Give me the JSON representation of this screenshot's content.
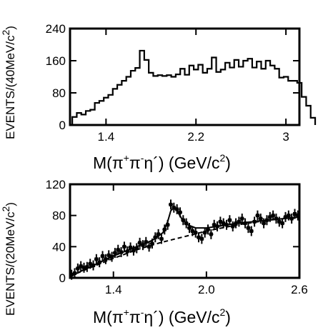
{
  "chart_data": [
    {
      "type": "histogram",
      "ylabel_main": "EVENTS/(40MeV/c",
      "ylabel_sup": "2",
      "ylabel_close": ")",
      "xlabel": {
        "m": "M(π",
        "plus": "+",
        "pi2": "π",
        "minus": "-",
        "eta": "η´)  (GeV/c",
        "sq": "2",
        "close": ")"
      },
      "xlim": [
        1.08,
        3.12
      ],
      "ylim": [
        0,
        240
      ],
      "xticks": [
        1.4,
        2.2,
        3.0
      ],
      "xtick_labels": [
        "1.4",
        "2.2",
        "3"
      ],
      "yticks": [
        0,
        80,
        160,
        240
      ],
      "ytick_labels": [
        "0",
        "80",
        "160",
        "240"
      ],
      "bin_width": 0.04,
      "bins_start": 1.1,
      "values": [
        20,
        30,
        26,
        35,
        38,
        55,
        60,
        68,
        75,
        90,
        100,
        110,
        120,
        135,
        142,
        185,
        162,
        130,
        122,
        124,
        122,
        124,
        120,
        126,
        140,
        125,
        148,
        138,
        150,
        130,
        140,
        168,
        132,
        138,
        155,
        143,
        162,
        145,
        160,
        165,
        143,
        158,
        140,
        160,
        148,
        140,
        118,
        120,
        110,
        110,
        105,
        70,
        48,
        18
      ]
    },
    {
      "type": "scatter",
      "ylabel_main": "EVENTS/(20MeV/c",
      "ylabel_sup": "2",
      "ylabel_close": ")",
      "xlabel": {
        "m": "M(π",
        "plus": "+",
        "pi2": "π",
        "minus": "-",
        "eta": "η´)  (GeV/c",
        "sq": "2",
        "close": ")"
      },
      "xlim": [
        1.12,
        2.6
      ],
      "ylim": [
        0,
        120
      ],
      "xticks": [
        1.4,
        2.0,
        2.6
      ],
      "xtick_labels": [
        "1.4",
        "2.0",
        "2.6"
      ],
      "yticks": [
        0,
        40,
        80,
        120
      ],
      "ytick_labels": [
        "0",
        "40",
        "80",
        "120"
      ],
      "points": [
        [
          1.13,
          4
        ],
        [
          1.15,
          6
        ],
        [
          1.17,
          12
        ],
        [
          1.19,
          15
        ],
        [
          1.21,
          13
        ],
        [
          1.23,
          14
        ],
        [
          1.25,
          18
        ],
        [
          1.27,
          16
        ],
        [
          1.29,
          24
        ],
        [
          1.31,
          20
        ],
        [
          1.33,
          28
        ],
        [
          1.35,
          24
        ],
        [
          1.37,
          29
        ],
        [
          1.39,
          27
        ],
        [
          1.41,
          32
        ],
        [
          1.43,
          36
        ],
        [
          1.45,
          33
        ],
        [
          1.47,
          40
        ],
        [
          1.49,
          34
        ],
        [
          1.51,
          39
        ],
        [
          1.53,
          35
        ],
        [
          1.55,
          38
        ],
        [
          1.57,
          45
        ],
        [
          1.59,
          42
        ],
        [
          1.61,
          46
        ],
        [
          1.63,
          40
        ],
        [
          1.65,
          44
        ],
        [
          1.67,
          52
        ],
        [
          1.69,
          56
        ],
        [
          1.71,
          50
        ],
        [
          1.73,
          62
        ],
        [
          1.75,
          68
        ],
        [
          1.77,
          94
        ],
        [
          1.79,
          90
        ],
        [
          1.81,
          88
        ],
        [
          1.83,
          84
        ],
        [
          1.85,
          74
        ],
        [
          1.87,
          70
        ],
        [
          1.89,
          64
        ],
        [
          1.91,
          60
        ],
        [
          1.93,
          58
        ],
        [
          1.95,
          52
        ],
        [
          1.97,
          50
        ],
        [
          1.99,
          58
        ],
        [
          2.01,
          62
        ],
        [
          2.03,
          56
        ],
        [
          2.05,
          68
        ],
        [
          2.07,
          66
        ],
        [
          2.09,
          72
        ],
        [
          2.11,
          70
        ],
        [
          2.13,
          68
        ],
        [
          2.15,
          74
        ],
        [
          2.17,
          66
        ],
        [
          2.19,
          70
        ],
        [
          2.21,
          72
        ],
        [
          2.23,
          76
        ],
        [
          2.25,
          70
        ],
        [
          2.27,
          64
        ],
        [
          2.29,
          60
        ],
        [
          2.31,
          72
        ],
        [
          2.33,
          80
        ],
        [
          2.35,
          76
        ],
        [
          2.37,
          70
        ],
        [
          2.39,
          74
        ],
        [
          2.41,
          78
        ],
        [
          2.43,
          80
        ],
        [
          2.45,
          76
        ],
        [
          2.47,
          72
        ],
        [
          2.49,
          70
        ],
        [
          2.51,
          78
        ],
        [
          2.53,
          80
        ],
        [
          2.55,
          76
        ],
        [
          2.57,
          82
        ],
        [
          2.59,
          80
        ]
      ],
      "fit_solid": [
        [
          1.12,
          2
        ],
        [
          1.25,
          14
        ],
        [
          1.4,
          28
        ],
        [
          1.55,
          40
        ],
        [
          1.65,
          48
        ],
        [
          1.72,
          58
        ],
        [
          1.75,
          72
        ],
        [
          1.77,
          86
        ],
        [
          1.79,
          90
        ],
        [
          1.81,
          86
        ],
        [
          1.84,
          76
        ],
        [
          1.88,
          68
        ],
        [
          1.93,
          64
        ],
        [
          2.0,
          64
        ],
        [
          2.1,
          67
        ],
        [
          2.2,
          70
        ],
        [
          2.3,
          72
        ],
        [
          2.4,
          74
        ],
        [
          2.5,
          76
        ],
        [
          2.6,
          78
        ]
      ],
      "fit_dashed": [
        [
          1.12,
          2
        ],
        [
          1.25,
          13
        ],
        [
          1.4,
          25
        ],
        [
          1.55,
          36
        ],
        [
          1.7,
          45
        ],
        [
          1.8,
          50
        ],
        [
          1.9,
          55
        ],
        [
          2.0,
          60
        ],
        [
          2.1,
          64
        ],
        [
          2.2,
          68
        ],
        [
          2.3,
          71
        ],
        [
          2.4,
          74
        ],
        [
          2.5,
          76
        ],
        [
          2.6,
          78
        ]
      ]
    }
  ]
}
